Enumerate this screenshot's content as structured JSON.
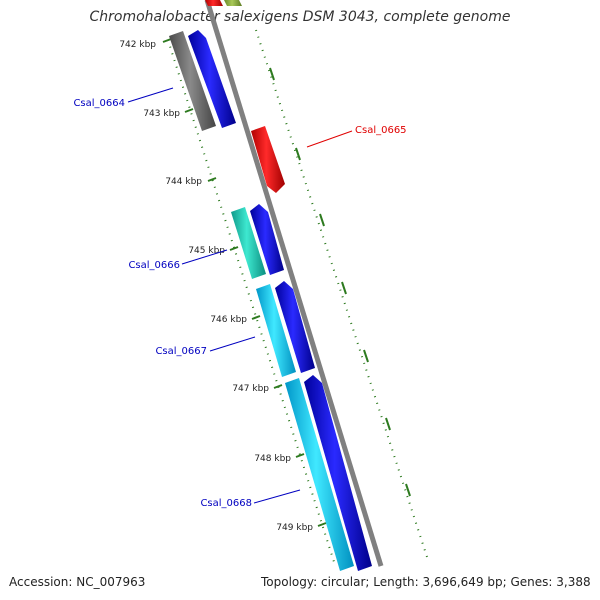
{
  "title": "Chromohalobacter salexigens DSM 3043, complete genome",
  "accession": "Accession: NC_007963",
  "summary": "Topology: circular; Length: 3,696,649 bp; Genes: 3,388",
  "colors": {
    "backbone": "#888888",
    "tick": "#2d7a1f",
    "forward_cds": "#1414e0",
    "reverse_cds": "#e01414",
    "cog_grey": "#6e6e6e",
    "cog_cyan": "#00c8dc",
    "cog_teal": "#1ec8b4",
    "cog_olive": "#8caa3c"
  },
  "chart_data": {
    "type": "diagram",
    "ticks": [
      "742 kbp",
      "743 kbp",
      "744 kbp",
      "745 kbp",
      "746 kbp",
      "747 kbp",
      "748 kbp",
      "749 kbp"
    ],
    "genes": [
      {
        "name": "Csal_0664",
        "strand": "forward",
        "cog_color": "grey"
      },
      {
        "name": "Csal_0665",
        "strand": "reverse",
        "cog_color": "none"
      },
      {
        "name": "Csal_0666",
        "strand": "forward",
        "cog_color": "teal"
      },
      {
        "name": "Csal_0667",
        "strand": "forward",
        "cog_color": "cyan"
      },
      {
        "name": "Csal_0668",
        "strand": "forward",
        "cog_color": "cyan"
      }
    ]
  }
}
